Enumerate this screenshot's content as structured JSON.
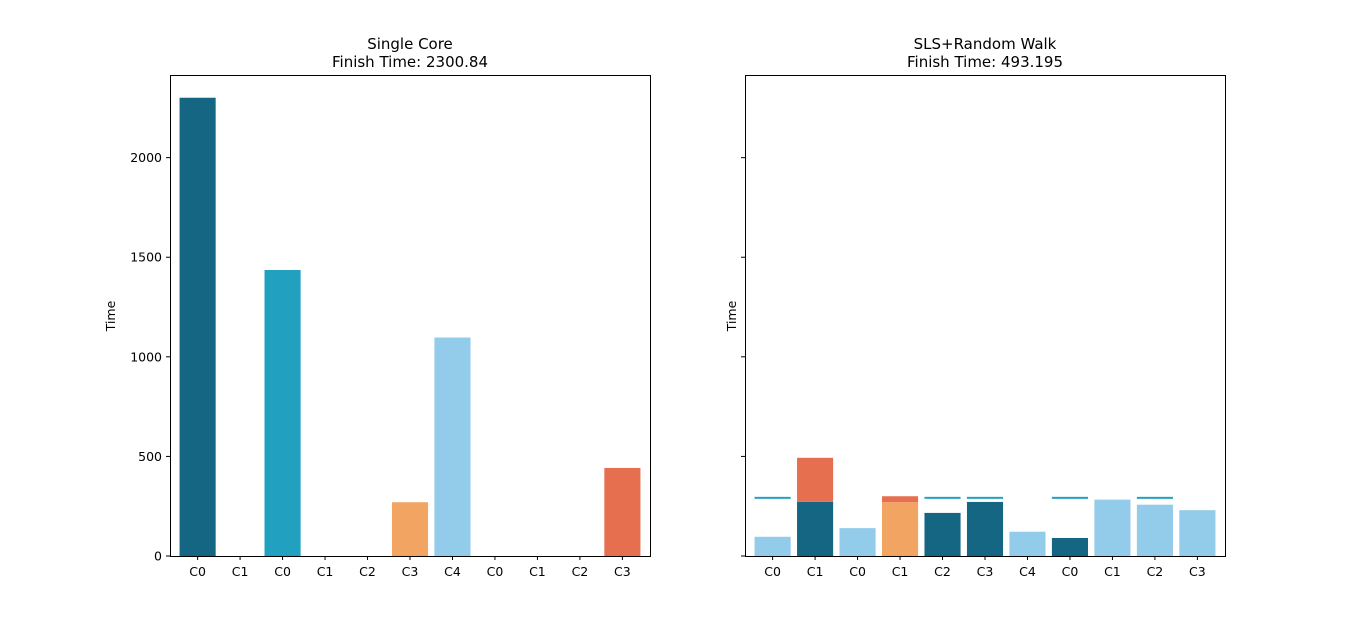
{
  "chart_data": [
    {
      "type": "bar",
      "title": "Single Core",
      "subtitle": "Finish Time: 2300.84",
      "xlabel": "",
      "ylabel": "Time",
      "ylim": [
        0,
        2415
      ],
      "yticks": [
        0,
        500,
        1000,
        1500,
        2000
      ],
      "ytick_labels": [
        "0",
        "500",
        "1000",
        "1500",
        "2000"
      ],
      "categories": [
        "C0",
        "C1",
        "C0",
        "C1",
        "C2",
        "C3",
        "C4",
        "C0",
        "C1",
        "C2",
        "C3"
      ],
      "colors": [
        "#146683",
        "#146683",
        "#22a0bf",
        "#22a0bf",
        "#22a0bf",
        "#f2a463",
        "#93cbea",
        "#93cbea",
        "#93cbea",
        "#93cbea",
        "#e66f50"
      ],
      "values": [
        2300.84,
        0,
        1436,
        0,
        0,
        270,
        1097,
        0,
        0,
        0,
        442
      ],
      "grid": false,
      "legend": "none"
    },
    {
      "type": "bar",
      "stacked": true,
      "title": "SLS+Random Walk",
      "subtitle": "Finish Time: 493.195",
      "xlabel": "",
      "ylabel": "Time",
      "ylim": [
        0,
        2415
      ],
      "yticks": [
        0,
        500,
        1000,
        1500,
        2000
      ],
      "show_ytick_labels": false,
      "categories": [
        "C0",
        "C1",
        "C0",
        "C1",
        "C2",
        "C3",
        "C4",
        "C0",
        "C1",
        "C2",
        "C3"
      ],
      "segments": [
        [
          {
            "value": 97,
            "color": "#93cbea"
          },
          {
            "value": 190,
            "color": "#ffffff"
          },
          {
            "value": 10,
            "color": "#22a0bf"
          }
        ],
        [
          {
            "value": 272,
            "color": "#146683"
          },
          {
            "value": 221,
            "color": "#e66f50"
          }
        ],
        [
          {
            "value": 140,
            "color": "#93cbea"
          }
        ],
        [
          {
            "value": 270,
            "color": "#f2a463"
          },
          {
            "value": 30,
            "color": "#e66f50"
          }
        ],
        [
          {
            "value": 217,
            "color": "#146683"
          },
          {
            "value": 70,
            "color": "#ffffff"
          },
          {
            "value": 10,
            "color": "#22a0bf"
          }
        ],
        [
          {
            "value": 272,
            "color": "#146683"
          },
          {
            "value": 15,
            "color": "#ffffff"
          },
          {
            "value": 10,
            "color": "#22a0bf"
          }
        ],
        [
          {
            "value": 122,
            "color": "#93cbea"
          }
        ],
        [
          {
            "value": 91,
            "color": "#146683"
          },
          {
            "value": 196,
            "color": "#ffffff"
          },
          {
            "value": 10,
            "color": "#22a0bf"
          }
        ],
        [
          {
            "value": 283,
            "color": "#93cbea"
          }
        ],
        [
          {
            "value": 258,
            "color": "#93cbea"
          },
          {
            "value": 29,
            "color": "#ffffff"
          },
          {
            "value": 10,
            "color": "#22a0bf"
          }
        ],
        [
          {
            "value": 230,
            "color": "#93cbea"
          }
        ]
      ],
      "grid": false,
      "legend": "none"
    }
  ]
}
